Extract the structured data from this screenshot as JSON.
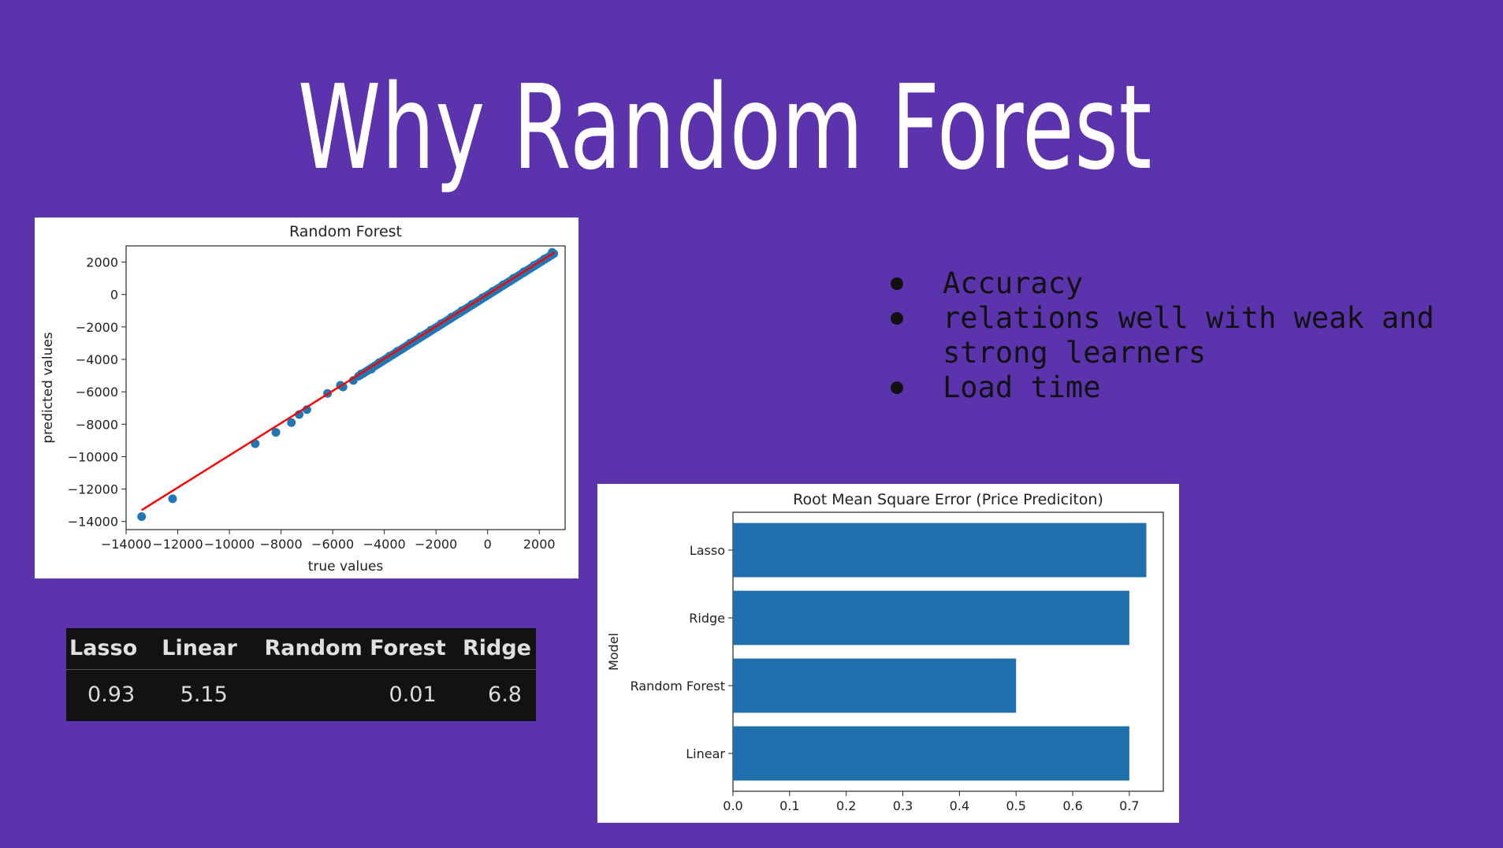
{
  "slide": {
    "title": "Why Random Forest",
    "bullets": [
      "Accuracy",
      "relations well with weak and strong learners",
      "Load time"
    ],
    "background_color": "#5b33ad"
  },
  "table": {
    "headers": [
      "Lasso",
      "Linear",
      "Random Forest",
      "Ridge"
    ],
    "values": [
      "0.93",
      "5.15",
      "0.01",
      "6.8"
    ]
  },
  "chart_data": [
    {
      "type": "scatter",
      "title": "Random Forest",
      "xlabel": "true values",
      "ylabel": "predicted values",
      "xlim": [
        -14000,
        3000
      ],
      "ylim": [
        -14500,
        3000
      ],
      "xticks": [
        -14000,
        -12000,
        -10000,
        -8000,
        -6000,
        -4000,
        -2000,
        0,
        2000
      ],
      "yticks": [
        2000,
        0,
        -2000,
        -4000,
        -6000,
        -8000,
        -10000,
        -12000,
        -14000
      ],
      "point_color": "#1f77b4",
      "line_color": "#ff0000",
      "fit_line": {
        "x": [
          -13400,
          2600
        ],
        "y": [
          -13300,
          2600
        ]
      },
      "x": [
        -13400,
        -12200,
        -9000,
        -8200,
        -7600,
        -7300,
        -7000,
        -6200,
        -5700,
        -5600,
        -5200,
        -4900,
        -4500,
        -4200,
        -3800,
        -3500,
        -3000,
        -2600,
        -2200,
        -1800,
        -1400,
        -1000,
        -600,
        -200,
        200,
        600,
        1000,
        1400,
        1800,
        2200,
        2500
      ],
      "y": [
        -13700,
        -12600,
        -9200,
        -8500,
        -7900,
        -7400,
        -7100,
        -6100,
        -5600,
        -5700,
        -5300,
        -4900,
        -4600,
        -4200,
        -3800,
        -3500,
        -3000,
        -2600,
        -2200,
        -1800,
        -1400,
        -1000,
        -600,
        -200,
        200,
        600,
        1000,
        1400,
        1800,
        2200,
        2600
      ]
    },
    {
      "type": "bar",
      "orientation": "horizontal",
      "title": "Root Mean Square Error (Price Prediciton)",
      "xlabel": "",
      "ylabel": "Model",
      "categories": [
        "Lasso",
        "Ridge",
        "Random Forest",
        "Linear"
      ],
      "values": [
        0.73,
        0.7,
        0.5,
        0.7
      ],
      "xlim": [
        0,
        0.76
      ],
      "xticks": [
        "0.0",
        "0.1",
        "0.2",
        "0.3",
        "0.4",
        "0.5",
        "0.6",
        "0.7"
      ],
      "bar_color": "#1f6fad"
    }
  ]
}
